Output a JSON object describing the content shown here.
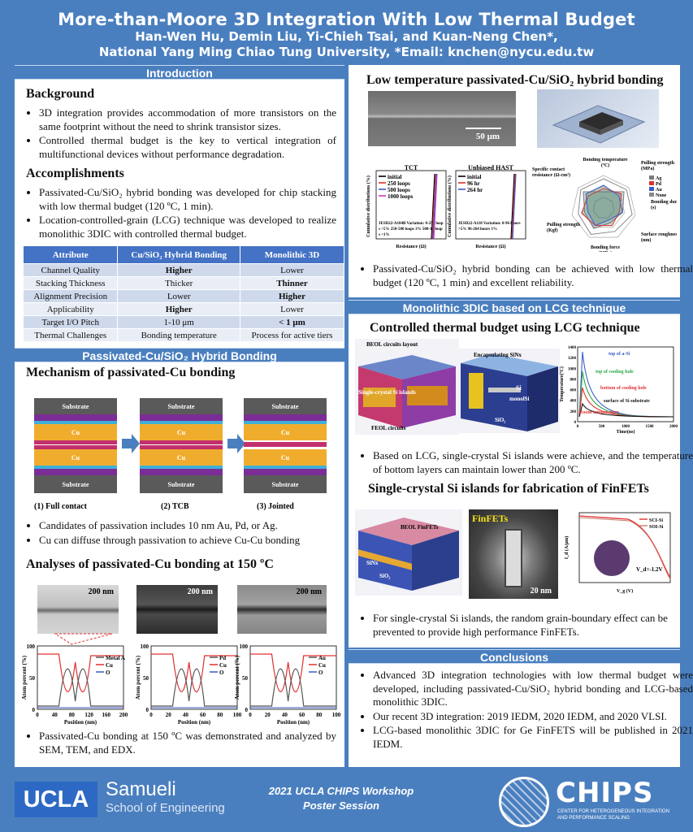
{
  "header": {
    "title": "More-than-Moore 3D Integration With Low Thermal Budget",
    "authors": "Han-Wen Hu, Demin Liu, Yi-Chieh Tsai, and Kuan-Neng Chen*,",
    "affiliation": "National Yang Ming Chiao Tung University, *Email: knchen@nycu.edu.tw"
  },
  "intro": {
    "bar": "Introduction",
    "background_title": "Background",
    "background_items": [
      "3D integration provides accommodation of more transistors on the same footprint without the need to shrink transistor sizes.",
      "Controlled thermal budget is the key to vertical integration of multifunctional devices without performance degradation."
    ],
    "accomplishments_title": "Accomplishments",
    "accomplishments_items": [
      "Passivated-Cu/SiO₂ hybrid bonding was developed for chip stacking with low thermal budget (120 ºC, 1 min).",
      "Location-controlled-grain (LCG) technique was developed to realize monolithic 3DIC with controlled thermal budget."
    ],
    "table": {
      "headers": [
        "Attribute",
        "Cu/SiO₂ Hybrid Bonding",
        "Monolithic 3D"
      ],
      "rows": [
        [
          "Channel Quality",
          "Higher",
          "Lower"
        ],
        [
          "Stacking Thickness",
          "Thicker",
          "Thinner"
        ],
        [
          "Alignment Precision",
          "Lower",
          "Higher"
        ],
        [
          "Applicability",
          "Higher",
          "Lower"
        ],
        [
          "Target I/O Pitch",
          "1-10 μm",
          "< 1 μm"
        ],
        [
          "Thermal Challenges",
          "Bonding temperature",
          "Process for active tiers"
        ]
      ]
    }
  },
  "passivated": {
    "bar": "Passivated-Cu/SiO₂ Hybrid Bonding",
    "mech_title": "Mechanism of passivated-Cu bonding",
    "diagram": {
      "substrate": "Substrate",
      "sio2": "SiO₂",
      "ti": "Ti",
      "cu": "Cu",
      "passivation": "Passivation",
      "captions": [
        "(1) Full contact",
        "(2) TCB",
        "(3) Jointed"
      ]
    },
    "mech_items": [
      "Candidates of passivation includes 10 nm Au, Pd, or Ag.",
      "Cu can diffuse through passivation to achieve Cu-Cu bonding"
    ],
    "analyses_title": "Analyses of passivated-Cu bonding at 150 ºC",
    "tem_scale": "200 nm",
    "edx": {
      "ylabel": "Atom percent (%)",
      "xlabel": "Position (nm)",
      "yticks": [
        "0",
        "50",
        "100"
      ],
      "xticks_a": [
        "0",
        "40",
        "80",
        "120",
        "160",
        "200"
      ],
      "xticks_b": [
        "0",
        "20",
        "40",
        "60",
        "80",
        "100"
      ],
      "legend_a": [
        "Metal A",
        "Cu",
        "O"
      ],
      "legend_b": [
        "Pd",
        "Cu",
        "O"
      ],
      "legend_c": [
        "Au",
        "Cu",
        "O"
      ]
    },
    "analyses_items": [
      "Passivated-Cu bonding at 150 ºC was demonstrated and analyzed by SEM, TEM, and EDX."
    ]
  },
  "lowtemp": {
    "title": "Low temperature passivated-Cu/SiO₂ hybrid bonding",
    "sem_scale": "50 μm",
    "tct": {
      "title": "TCT",
      "legend": [
        "initial",
        "250 loops",
        "500 loops",
        "1000 loops"
      ],
      "note": "JESD22-A104B Variation: 0-250 loops >5% 250-500 loops 3% 500-1k loops <1%"
    },
    "hast": {
      "title": "Unbiased HAST",
      "legend": [
        "initial",
        "96 hr",
        "264 hr"
      ],
      "note": "JESD22-A118 Variation: 0-96 hours >5% 96-264 hours 1%"
    },
    "ylabel": "Cumulative distributions (%)",
    "xlabel": "Resistance (Ω)",
    "radar": {
      "axes": [
        "Bonding temperature (ºC)",
        "Pulling strength (MPa)",
        "Bonding duration (s)",
        "Surface roughness (nm)",
        "Bonding force (MPa)",
        "Pulling strength (Kgf)",
        "Specific contact resistance (Ω-cm²)"
      ],
      "legend": [
        "Ag",
        "Pd",
        "Au",
        "None"
      ]
    },
    "items": [
      "Passivated-Cu/SiO₂ hybrid bonding can be achieved with low thermal budget (120 ºC, 1 min) and excellent reliability."
    ]
  },
  "lcg": {
    "bar": "Monolithic 3DIC based on LCG technique",
    "title1": "Controlled thermal budget using LCG technique",
    "diag1_labels": [
      "BEOL circuits layout",
      "Single-crystal Si islands",
      "FEOL circuits",
      "Encapsulating SiNx",
      "Si",
      "monolSi",
      "SiO₂"
    ],
    "temp_chart": {
      "ylabel": "Temperature(ºC)",
      "xlabel": "Time(ns)",
      "yticks": [
        "0",
        "200",
        "400",
        "600",
        "800",
        "1000",
        "1200",
        "1400"
      ],
      "xticks": [
        "0",
        "500",
        "1000",
        "1500",
        "2000"
      ],
      "labels": [
        "top of a-Si",
        "top of cooling hole",
        "bottom of cooling hole",
        "surface of Si substrate",
        "Room temperature"
      ]
    },
    "items1": [
      "Based on LCG, single-crystal Si islands were achieve, and the temperature of bottom layers can maintain lower than 200 ºC."
    ],
    "title2": "Single-crystal Si islands for fabrication of FinFETs",
    "diag2_labels": [
      "BEOL FinFETs",
      "SiNx",
      "SiO₂",
      "Si"
    ],
    "finfet_label": "FinFETs",
    "finfet_scale": "20 nm",
    "iv_chart": {
      "legend": [
        "SCI-Si",
        "SOI-Si"
      ],
      "ylabel": "I_d (A/μm)",
      "xlabel": "V_g (V)",
      "vd": "V_d=-1.2V"
    },
    "items2": [
      "For single-crystal Si islands, the random grain-boundary effect can be prevented to provide high performance FinFETs."
    ]
  },
  "conclusions": {
    "bar": "Conclusions",
    "items": [
      "Advanced 3D integration technologies with low thermal budget were developed, including passivated-Cu/SiO₂ hybrid bonding and LCG-based monolithic 3DIC.",
      "Our recent 3D integration: 2019 IEDM, 2020 IEDM, and 2020 VLSI.",
      "LCG-based monolithic 3DIC for Ge FinFETS will be published in 2021 IEDM."
    ]
  },
  "footer": {
    "ucla": "UCLA",
    "samueli": "Samueli",
    "school": "School of Engineering",
    "workshop": "2021 UCLA CHIPS Workshop",
    "session": "Poster Session",
    "chips": "CHIPS",
    "chips_sub1": "CENTER FOR HETEROGENEOUS INTEGRATION",
    "chips_sub2": "AND PERFORMANCE SCALING"
  }
}
